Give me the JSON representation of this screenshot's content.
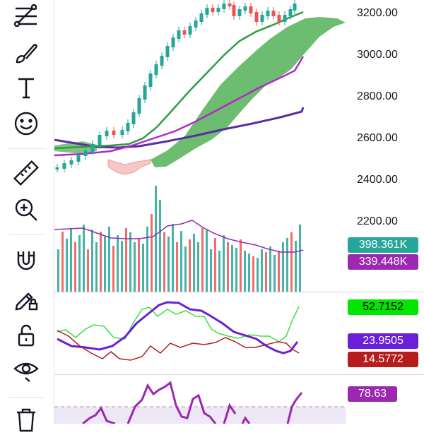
{
  "toolbar": {
    "tools": [
      "trend-line-tool",
      "brush-tool",
      "text-tool",
      "emoji-tool",
      "measure-tool",
      "zoom-in-tool",
      "magnet-tool",
      "lock-drawing-tool",
      "unlock-tool",
      "visibility-tool",
      "trash-tool"
    ]
  },
  "price_axis": {
    "labels": [
      "3200.00",
      "3000.00",
      "2800.00",
      "2600.00",
      "2400.00",
      "2200.00"
    ]
  },
  "badges": {
    "volume": "398.361K",
    "volume_ma": "339.448K",
    "green_line": "52.7152",
    "purple_line": "23.9505",
    "red_line": "14.5772",
    "rsi": "78.63"
  },
  "colors": {
    "up": "#26a69a",
    "down": "#ef5350",
    "cloud_green": "#4caf50",
    "ma_purple": "#9c27b0",
    "ma_dark": "#5b2c9f",
    "ma_green": "#2e9c3f",
    "badge_teal": "#26a69a",
    "badge_purple": "#9c27b0",
    "badge_green": "#00e600",
    "badge_indigo": "#6a1fd8",
    "badge_red": "#b71c1c",
    "badge_rsi": "#9c27b0"
  }
}
